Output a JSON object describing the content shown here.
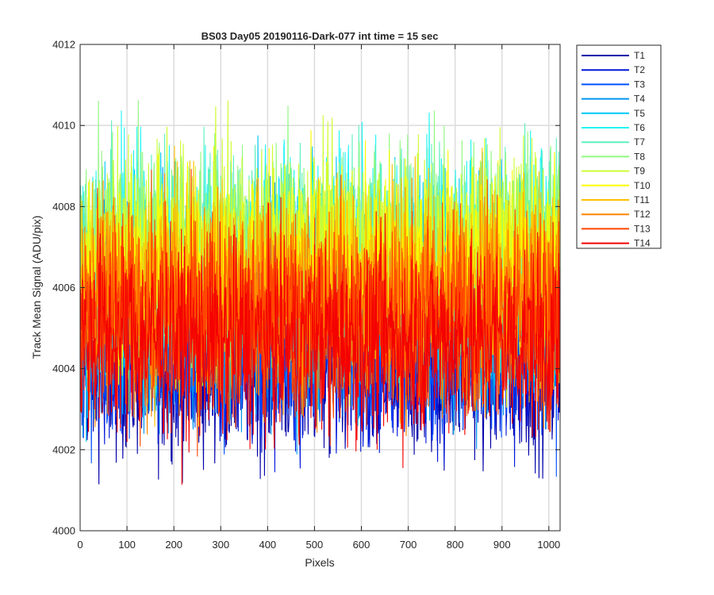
{
  "chart_data": {
    "type": "line",
    "title": "BS03 Day05 20190116-Dark-077 int time = 15 sec",
    "xlabel": "Pixels",
    "ylabel": "Track Mean Signal (ADU/pix)",
    "xlim": [
      0,
      1024
    ],
    "ylim": [
      4000,
      4012
    ],
    "xticks": [
      0,
      100,
      200,
      300,
      400,
      500,
      600,
      700,
      800,
      900,
      1000
    ],
    "yticks": [
      4000,
      4002,
      4004,
      4006,
      4008,
      4010,
      4012
    ],
    "grid": true,
    "legend_position": "outside-right-top",
    "n_points_per_series": 1024,
    "series": [
      {
        "name": "T1",
        "color": "#0000aa",
        "mean": 4004.0,
        "spread": 1.1
      },
      {
        "name": "T2",
        "color": "#0018d8",
        "mean": 4004.3,
        "spread": 1.1
      },
      {
        "name": "T3",
        "color": "#0050ff",
        "mean": 4004.6,
        "spread": 1.1
      },
      {
        "name": "T4",
        "color": "#0094f0",
        "mean": 4005.3,
        "spread": 1.3
      },
      {
        "name": "T5",
        "color": "#00c8f8",
        "mean": 4006.0,
        "spread": 1.4
      },
      {
        "name": "T6",
        "color": "#20f4f4",
        "mean": 4006.6,
        "spread": 1.4
      },
      {
        "name": "T7",
        "color": "#5ef0c0",
        "mean": 4006.9,
        "spread": 1.3
      },
      {
        "name": "T8",
        "color": "#90f880",
        "mean": 4007.0,
        "spread": 1.3
      },
      {
        "name": "T9",
        "color": "#cdfc30",
        "mean": 4006.8,
        "spread": 1.3
      },
      {
        "name": "T10",
        "color": "#fcfc00",
        "mean": 4006.4,
        "spread": 1.3
      },
      {
        "name": "T11",
        "color": "#fcc000",
        "mean": 4006.0,
        "spread": 1.3
      },
      {
        "name": "T12",
        "color": "#ff8400",
        "mean": 4005.6,
        "spread": 1.3
      },
      {
        "name": "T13",
        "color": "#ff4600",
        "mean": 4005.3,
        "spread": 1.3
      },
      {
        "name": "T14",
        "color": "#f40000",
        "mean": 4004.7,
        "spread": 1.2
      }
    ]
  }
}
